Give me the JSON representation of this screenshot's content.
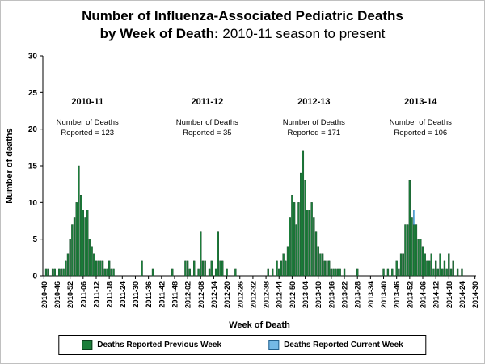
{
  "title": {
    "line1": "Number of Influenza-Associated Pediatric Deaths",
    "line2_bold": "by Week of Death:",
    "line2_rest": " 2010-11 season to present"
  },
  "legend": {
    "items": [
      {
        "label": "Deaths Reported Previous Week",
        "color": "#1b7e3a",
        "border": "#0b3d1c"
      },
      {
        "label": "Deaths Reported Current Week",
        "color": "#74b9e6",
        "border": "#23618e"
      }
    ]
  },
  "chart_data": {
    "type": "bar",
    "stacked": true,
    "title": "Number of Influenza-Associated Pediatric Deaths by Week of Death: 2010-11 season to present",
    "xlabel": "Week of Death",
    "ylabel": "Number of deaths",
    "ylim": [
      0,
      30
    ],
    "yticks": [
      0,
      5,
      10,
      15,
      20,
      25,
      30
    ],
    "x_tick_every": 6,
    "grid": false,
    "legend_position": "bottom",
    "week_ranges": [
      {
        "year": 2010,
        "from": 40,
        "to": 52
      },
      {
        "year": 2011,
        "from": 1,
        "to": 52
      },
      {
        "year": 2012,
        "from": 1,
        "to": 52
      },
      {
        "year": 2013,
        "from": 1,
        "to": 52
      },
      {
        "year": 2014,
        "from": 1,
        "to": 30
      }
    ],
    "x_tick_labels": [
      "2010-40",
      "2010-46",
      "2010-52",
      "2011-06",
      "2011-12",
      "2011-18",
      "2011-24",
      "2011-30",
      "2011-36",
      "2011-42",
      "2011-48",
      "2012-02",
      "2012-08",
      "2012-14",
      "2012-20",
      "2012-26",
      "2012-32",
      "2012-38",
      "2012-44",
      "2012-50",
      "2013-04",
      "2013-10",
      "2013-16",
      "2013-22",
      "2013-28",
      "2013-34",
      "2013-40",
      "2013-46",
      "2013-52",
      "2014-06",
      "2014-12",
      "2014-18",
      "2014-24",
      "2014-30"
    ],
    "series": [
      {
        "name": "Deaths Reported Previous Week",
        "color": "#1b7e3a",
        "edge": "#0b3d1c",
        "values_by_week": {
          "2010-41": 1,
          "2010-42": 1,
          "2010-44": 1,
          "2010-45": 1,
          "2010-47": 1,
          "2010-48": 1,
          "2010-49": 1,
          "2010-50": 2,
          "2010-51": 3,
          "2010-52": 5,
          "2011-01": 7,
          "2011-02": 8,
          "2011-03": 10,
          "2011-04": 15,
          "2011-05": 11,
          "2011-06": 9,
          "2011-07": 8,
          "2011-08": 9,
          "2011-09": 5,
          "2011-10": 4,
          "2011-11": 3,
          "2011-12": 2,
          "2011-13": 2,
          "2011-14": 2,
          "2011-15": 2,
          "2011-16": 1,
          "2011-17": 1,
          "2011-18": 2,
          "2011-19": 1,
          "2011-20": 1,
          "2011-33": 2,
          "2011-38": 1,
          "2011-47": 1,
          "2012-01": 2,
          "2012-02": 2,
          "2012-03": 1,
          "2012-05": 2,
          "2012-07": 1,
          "2012-08": 6,
          "2012-09": 2,
          "2012-10": 2,
          "2012-12": 1,
          "2012-13": 2,
          "2012-15": 1,
          "2012-16": 6,
          "2012-17": 2,
          "2012-18": 2,
          "2012-20": 1,
          "2012-24": 1,
          "2012-39": 1,
          "2012-41": 1,
          "2012-43": 2,
          "2012-44": 1,
          "2012-45": 2,
          "2012-46": 3,
          "2012-47": 2,
          "2012-48": 4,
          "2012-49": 8,
          "2012-50": 11,
          "2012-51": 10,
          "2012-52": 7,
          "2013-01": 10,
          "2013-02": 14,
          "2013-03": 17,
          "2013-04": 13,
          "2013-05": 9,
          "2013-06": 9,
          "2013-07": 10,
          "2013-08": 8,
          "2013-09": 6,
          "2013-10": 4,
          "2013-11": 3,
          "2013-12": 3,
          "2013-13": 2,
          "2013-14": 2,
          "2013-15": 2,
          "2013-16": 1,
          "2013-17": 1,
          "2013-18": 1,
          "2013-19": 1,
          "2013-20": 1,
          "2013-22": 1,
          "2013-28": 1,
          "2013-40": 1,
          "2013-42": 1,
          "2013-44": 1,
          "2013-46": 2,
          "2013-47": 1,
          "2013-48": 3,
          "2013-49": 3,
          "2013-50": 7,
          "2013-51": 7,
          "2013-52": 13,
          "2014-01": 8,
          "2014-02": 7,
          "2014-03": 7,
          "2014-04": 5,
          "2014-05": 5,
          "2014-06": 4,
          "2014-07": 3,
          "2014-08": 2,
          "2014-09": 2,
          "2014-10": 3,
          "2014-11": 1,
          "2014-12": 2,
          "2014-13": 1,
          "2014-14": 3,
          "2014-15": 1,
          "2014-16": 2,
          "2014-17": 1,
          "2014-18": 3,
          "2014-19": 1,
          "2014-20": 2,
          "2014-22": 1,
          "2014-24": 1
        }
      },
      {
        "name": "Deaths Reported Current Week",
        "color": "#74b9e6",
        "edge": "#23618e",
        "values_by_week": {
          "2014-02": 2
        }
      }
    ],
    "season_annotations": [
      {
        "season": "2010-11",
        "detail_line1": "Number of Deaths",
        "detail_line2": "Reported = 123",
        "total": 123,
        "center_week": "2011-08"
      },
      {
        "season": "2011-12",
        "detail_line1": "Number of Deaths",
        "detail_line2": "Reported = 35",
        "total": 35,
        "center_week": "2012-11"
      },
      {
        "season": "2012-13",
        "detail_line1": "Number of Deaths",
        "detail_line2": "Reported = 171",
        "total": 171,
        "center_week": "2013-08"
      },
      {
        "season": "2013-14",
        "detail_line1": "Number of Deaths",
        "detail_line2": "Reported = 106",
        "total": 106,
        "center_week": "2014-05"
      }
    ]
  }
}
